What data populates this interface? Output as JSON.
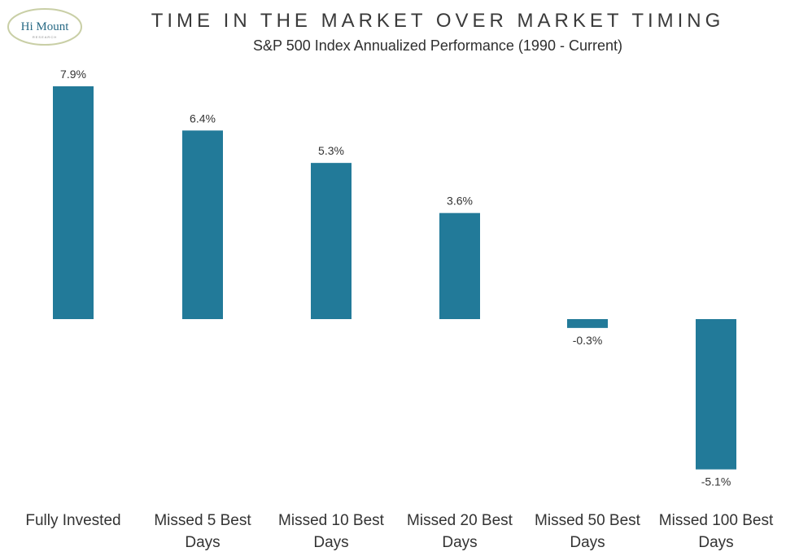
{
  "logo": {
    "text": "Hi Mount",
    "subtext": "RESEARCH"
  },
  "chart_data": {
    "type": "bar",
    "title": "TIME IN THE MARKET OVER MARKET TIMING",
    "subtitle": "S&P 500 Index Annualized Performance (1990 - Current)",
    "categories": [
      [
        "Fully Invested"
      ],
      [
        "Missed 5 Best",
        "Days"
      ],
      [
        "Missed 10 Best",
        "Days"
      ],
      [
        "Missed 20 Best",
        "Days"
      ],
      [
        "Missed 50 Best",
        "Days"
      ],
      [
        "Missed 100 Best",
        "Days"
      ]
    ],
    "values": [
      7.9,
      6.4,
      5.3,
      3.6,
      -0.3,
      -5.1
    ],
    "value_labels": [
      "7.9%",
      "6.4%",
      "5.3%",
      "3.6%",
      "-0.3%",
      "-5.1%"
    ],
    "bar_color": "#227a99",
    "ylim": [
      -5.1,
      7.9
    ],
    "grid": false
  }
}
